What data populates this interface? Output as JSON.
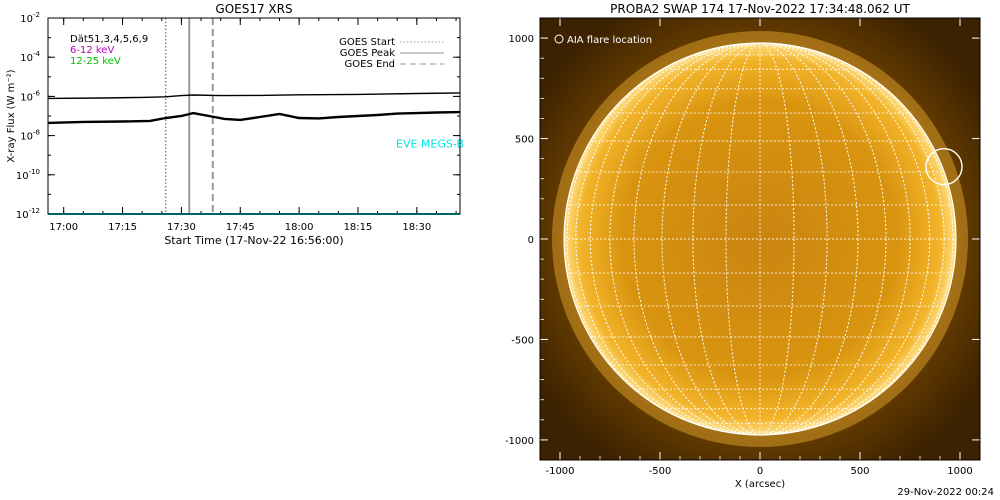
{
  "chart_data": [
    {
      "type": "line",
      "title": "GOES17 XRS",
      "xlabel": "Start Time (17-Nov-22 16:56:00)",
      "ylabel": "X-ray Flux (W m⁻²)",
      "y_scale": "log",
      "ylim_exponent": [
        -12,
        -2
      ],
      "y_tick_exponents": [
        -12,
        -10,
        -8,
        -6,
        -4,
        -2
      ],
      "xlim": [
        "16:56",
        "18:41"
      ],
      "x_ticks": [
        "17:00",
        "17:15",
        "17:30",
        "17:45",
        "18:00",
        "18:15",
        "18:30"
      ],
      "legend_left": [
        {
          "text": "Dät51,3,4,5,6,9",
          "color": "#000000"
        },
        {
          "text": "6-12 keV",
          "color": "#c000c0"
        },
        {
          "text": "12-25 keV",
          "color": "#00c000"
        }
      ],
      "legend_right": [
        {
          "text": "GOES Start",
          "style": "dotted"
        },
        {
          "text": "GOES Peak",
          "style": "solid"
        },
        {
          "text": "GOES End",
          "style": "dashed"
        }
      ],
      "markers": {
        "start": "17:26",
        "peak": "17:32",
        "end": "17:38"
      },
      "annotation": {
        "text": "EVE MEGS-B",
        "color": "#00e5e5"
      },
      "series": [
        {
          "color": "#000000",
          "x": [
            "16:56",
            "17:10",
            "17:20",
            "17:26",
            "17:30",
            "17:33",
            "17:40",
            "17:50",
            "18:00",
            "18:15",
            "18:30",
            "18:41"
          ],
          "log_values": [
            -6.1,
            -6.08,
            -6.05,
            -6.02,
            -5.96,
            -5.93,
            -5.96,
            -5.95,
            -5.92,
            -5.9,
            -5.85,
            -5.82
          ]
        },
        {
          "color": "#000000",
          "x": [
            "16:56",
            "17:05",
            "17:15",
            "17:22",
            "17:26",
            "17:30",
            "17:33",
            "17:37",
            "17:41",
            "17:45",
            "17:50",
            "17:55",
            "18:00",
            "18:05",
            "18:10",
            "18:15",
            "18:20",
            "18:25",
            "18:30",
            "18:35",
            "18:41"
          ],
          "log_values": [
            -7.35,
            -7.3,
            -7.28,
            -7.25,
            -7.1,
            -7.0,
            -6.85,
            -7.0,
            -7.15,
            -7.2,
            -7.05,
            -6.9,
            -7.1,
            -7.12,
            -7.05,
            -7.0,
            -6.95,
            -6.88,
            -6.85,
            -6.82,
            -6.8
          ]
        },
        {
          "color": "#00c8c8",
          "x": [
            "16:56",
            "18:41"
          ],
          "log_values": [
            -12.0,
            -12.0
          ]
        }
      ]
    },
    {
      "type": "image",
      "title": "PROBA2 SWAP 174 17-Nov-2022 17:34:48.062 UT",
      "xlabel": "X (arcsec)",
      "xlim": [
        -1100,
        1100
      ],
      "ylim": [
        -1100,
        1100
      ],
      "x_ticks": [
        -1000,
        -500,
        0,
        500,
        1000
      ],
      "y_ticks": [
        -1000,
        -500,
        0,
        500,
        1000
      ],
      "solar_radius": 980,
      "legend": "AIA flare location",
      "flare_location": [
        920,
        360
      ],
      "colors": {
        "corona": "#8a5a00",
        "disk": "#e39a14",
        "grid": "#ffffff"
      }
    }
  ],
  "footer": {
    "date": "29-Nov-2022 00:24"
  }
}
